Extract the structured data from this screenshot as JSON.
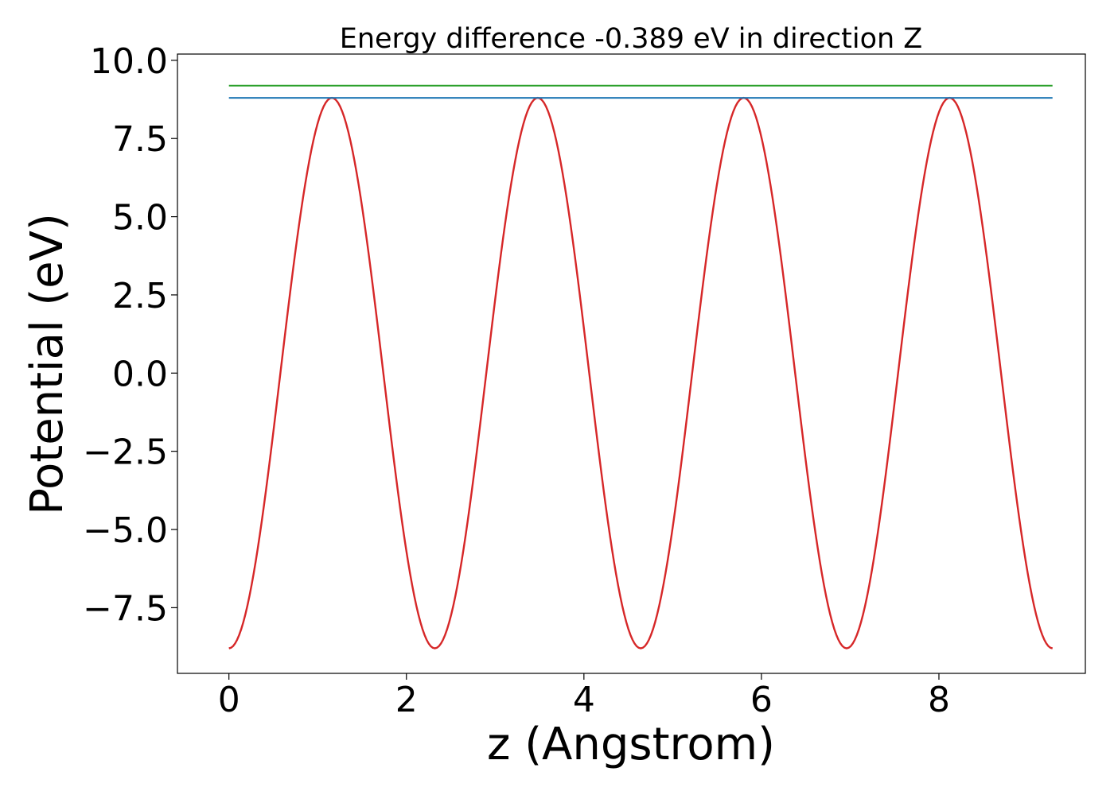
{
  "chart_data": {
    "type": "line",
    "title": "Energy difference -0.389 eV in direction Z",
    "xlabel": "z (Angstrom)",
    "ylabel": "Potential (eV)",
    "xlim": [
      -0.58,
      9.65
    ],
    "ylim": [
      -9.6,
      10.2
    ],
    "xticks": [
      0,
      2,
      4,
      6,
      8
    ],
    "xtick_labels": [
      "0",
      "2",
      "4",
      "6",
      "8"
    ],
    "yticks": [
      -7.5,
      -5.0,
      -2.5,
      0.0,
      2.5,
      5.0,
      7.5,
      10.0
    ],
    "ytick_labels": [
      "−7.5",
      "−5.0",
      "−2.5",
      "0.0",
      "2.5",
      "5.0",
      "7.5",
      "10.0"
    ],
    "grid": false,
    "series": [
      {
        "color": "#d62728",
        "function": "amplitude * -cos(2*pi*z/period)",
        "amplitude": 8.8,
        "period": 2.32,
        "x_range": [
          0,
          9.28
        ],
        "samples": 400
      },
      {
        "color": "#2ca02c",
        "x": [
          0,
          9.28
        ],
        "y": [
          9.19,
          9.19
        ]
      },
      {
        "color": "#1f77b4",
        "x": [
          0,
          9.28
        ],
        "y": [
          8.8,
          8.8
        ]
      }
    ]
  }
}
